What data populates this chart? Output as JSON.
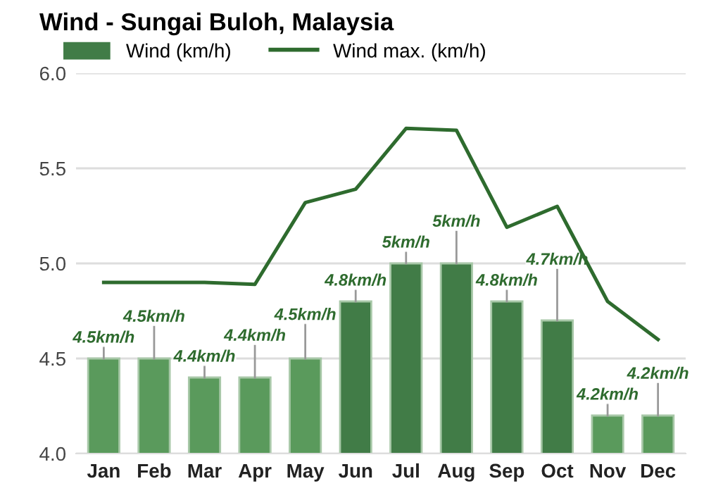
{
  "chart_data": {
    "type": "bar",
    "title": "Wind - Sungai Buloh, Malaysia",
    "categories": [
      "Jan",
      "Feb",
      "Mar",
      "Apr",
      "May",
      "Jun",
      "Jul",
      "Aug",
      "Sep",
      "Oct",
      "Nov",
      "Dec"
    ],
    "series": [
      {
        "name": "Wind (km/h)",
        "color": "#417c47",
        "colors": [
          "#5a9a5c",
          "#5a9a5c",
          "#5a9a5c",
          "#5a9a5c",
          "#5a9a5c",
          "#417c47",
          "#417c47",
          "#417c47",
          "#417c47",
          "#417c47",
          "#5a9a5c",
          "#5a9a5c"
        ],
        "values": [
          4.5,
          4.5,
          4.4,
          4.4,
          4.5,
          4.8,
          5,
          5,
          4.8,
          4.7,
          4.2,
          4.2
        ],
        "value_labels": [
          "4.5km/h",
          "4.5km/h",
          "4.4km/h",
          "4.4km/h",
          "4.5km/h",
          "4.8km/h",
          "5km/h",
          "5km/h",
          "4.8km/h",
          "4.7km/h",
          "4.2km/h",
          "4.2km/h"
        ]
      },
      {
        "name": "Wind max. (km/h)",
        "type": "line",
        "color": "#2e6b2e",
        "values": [
          4.9,
          4.9,
          4.9,
          4.89,
          5.32,
          5.39,
          5.71,
          5.7,
          5.19,
          5.3,
          4.8,
          4.6
        ]
      }
    ],
    "ylim": [
      4.0,
      6.0
    ],
    "yticks": [
      {
        "value": 4.0,
        "label": "4.0"
      },
      {
        "value": 4.5,
        "label": "4.5"
      },
      {
        "value": 5.0,
        "label": "5.0"
      },
      {
        "value": 5.5,
        "label": "5.5"
      },
      {
        "value": 6.0,
        "label": "6.0"
      }
    ],
    "grid": "y",
    "legend": "top left"
  }
}
